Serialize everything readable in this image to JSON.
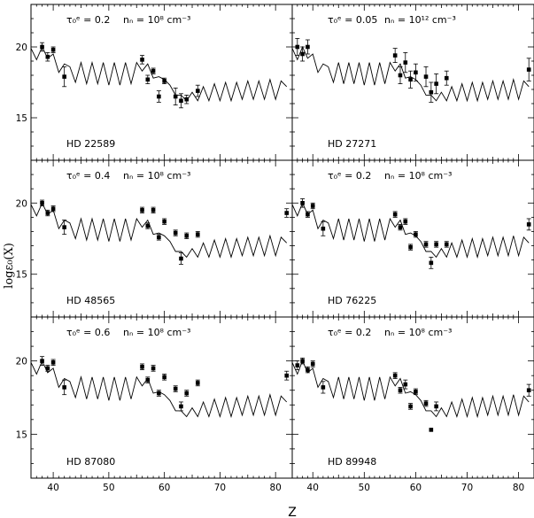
{
  "chart_data": {
    "type": "scatter",
    "layout": "3x2 panel grid with shared axes",
    "xlabel": "Z",
    "ylabel": "logε₀(X)",
    "xlim": [
      36,
      83
    ],
    "ylim": [
      12,
      23
    ],
    "xticks": [
      40,
      50,
      60,
      70,
      80
    ],
    "yticks": [
      15,
      20
    ],
    "model_line": {
      "x": [
        36,
        37,
        38,
        39,
        40,
        41,
        42,
        43,
        44,
        45,
        46,
        47,
        48,
        49,
        50,
        51,
        52,
        53,
        54,
        55,
        56,
        57,
        58,
        59,
        60,
        61,
        62,
        63,
        64,
        65,
        66,
        67,
        68,
        69,
        70,
        71,
        72,
        73,
        74,
        75,
        76,
        77,
        78,
        79,
        80,
        81,
        82
      ],
      "y": [
        19.9,
        19.1,
        20.0,
        19.2,
        19.5,
        18.2,
        18.8,
        18.6,
        17.5,
        18.9,
        17.4,
        18.9,
        17.4,
        18.9,
        17.3,
        18.9,
        17.3,
        18.9,
        17.4,
        18.9,
        18.3,
        18.8,
        17.8,
        17.9,
        17.7,
        17.3,
        16.6,
        16.6,
        16.2,
        16.8,
        16.2,
        17.2,
        16.2,
        17.4,
        16.2,
        17.5,
        16.2,
        17.5,
        16.3,
        17.6,
        16.3,
        17.6,
        16.3,
        17.7,
        16.3,
        17.6,
        17.2
      ]
    },
    "panels": [
      {
        "tau_label": "τ₀ᵉ = 0.2",
        "nn_label": "nₙ = 10⁸ cm⁻³",
        "star": "HD 22589",
        "x": [
          38,
          39,
          40,
          42,
          56,
          57,
          58,
          59,
          60,
          62,
          63,
          64,
          66
        ],
        "y": [
          20.0,
          19.3,
          19.8,
          17.9,
          19.1,
          17.7,
          18.3,
          16.5,
          17.6,
          16.5,
          16.2,
          16.3,
          16.9
        ],
        "err": [
          0.3,
          0.3,
          0.2,
          0.7,
          0.3,
          0.3,
          0.2,
          0.4,
          0.2,
          0.6,
          0.5,
          0.3,
          0.4
        ]
      },
      {
        "tau_label": "τ₀ᵉ = 0.05",
        "nn_label": "nₙ = 10¹² cm⁻³",
        "star": "HD 27271",
        "x": [
          37,
          38,
          39,
          56,
          57,
          58,
          59,
          60,
          62,
          63,
          64,
          66,
          82
        ],
        "y": [
          20.0,
          19.5,
          20.0,
          19.4,
          18.0,
          18.9,
          17.7,
          18.2,
          17.9,
          16.8,
          17.4,
          17.8,
          18.4
        ],
        "err": [
          0.6,
          0.5,
          0.5,
          0.5,
          0.6,
          0.7,
          0.6,
          0.6,
          0.7,
          0.7,
          0.7,
          0.5,
          0.8
        ]
      },
      {
        "tau_label": "τ₀ᵉ = 0.4",
        "nn_label": "nₙ = 10⁸ cm⁻³",
        "star": "HD 48565",
        "x": [
          38,
          39,
          40,
          42,
          56,
          57,
          58,
          59,
          60,
          62,
          63,
          64,
          66,
          82
        ],
        "y": [
          20.0,
          19.3,
          19.6,
          18.3,
          19.5,
          18.4,
          19.5,
          17.6,
          18.7,
          17.9,
          16.1,
          17.7,
          17.8,
          19.3
        ],
        "err": [
          0.2,
          0.2,
          0.2,
          0.5,
          0.2,
          0.2,
          0.2,
          0.2,
          0.2,
          0.2,
          0.4,
          0.2,
          0.2,
          0.3
        ]
      },
      {
        "tau_label": "τ₀ᵉ = 0.2",
        "nn_label": "nₙ = 10⁸ cm⁻³",
        "star": "HD 76225",
        "x": [
          38,
          39,
          40,
          42,
          56,
          57,
          58,
          59,
          60,
          62,
          63,
          64,
          66,
          82
        ],
        "y": [
          20.0,
          19.2,
          19.8,
          18.2,
          19.2,
          18.3,
          18.7,
          16.9,
          17.8,
          17.1,
          15.8,
          17.1,
          17.1,
          18.5
        ],
        "err": [
          0.3,
          0.2,
          0.2,
          0.5,
          0.2,
          0.2,
          0.2,
          0.2,
          0.2,
          0.2,
          0.4,
          0.2,
          0.2,
          0.4
        ]
      },
      {
        "tau_label": "τ₀ᵉ = 0.6",
        "nn_label": "nₙ = 10⁸ cm⁻³",
        "star": "HD 87080",
        "x": [
          38,
          39,
          40,
          42,
          56,
          57,
          58,
          59,
          60,
          62,
          63,
          64,
          66,
          82
        ],
        "y": [
          20.0,
          19.5,
          19.9,
          18.2,
          19.6,
          18.7,
          19.5,
          17.8,
          18.9,
          18.1,
          16.9,
          17.8,
          18.5,
          19.0
        ],
        "err": [
          0.3,
          0.2,
          0.2,
          0.5,
          0.2,
          0.2,
          0.2,
          0.2,
          0.2,
          0.2,
          0.3,
          0.2,
          0.2,
          0.3
        ]
      },
      {
        "tau_label": "τ₀ᵉ = 0.2",
        "nn_label": "nₙ = 10⁸ cm⁻³",
        "star": "HD 89948",
        "x": [
          37,
          38,
          39,
          40,
          42,
          56,
          57,
          58,
          59,
          60,
          62,
          63,
          64,
          82
        ],
        "y": [
          19.7,
          20.0,
          19.4,
          19.8,
          18.2,
          19.0,
          18.0,
          18.4,
          16.9,
          17.9,
          17.1,
          15.3,
          16.9,
          18.0
        ],
        "err": [
          0.3,
          0.2,
          0.2,
          0.2,
          0.4,
          0.2,
          0.2,
          0.3,
          0.2,
          0.2,
          0.2,
          0.0,
          0.3,
          0.4
        ]
      }
    ],
    "grid": false,
    "legend": "none"
  }
}
